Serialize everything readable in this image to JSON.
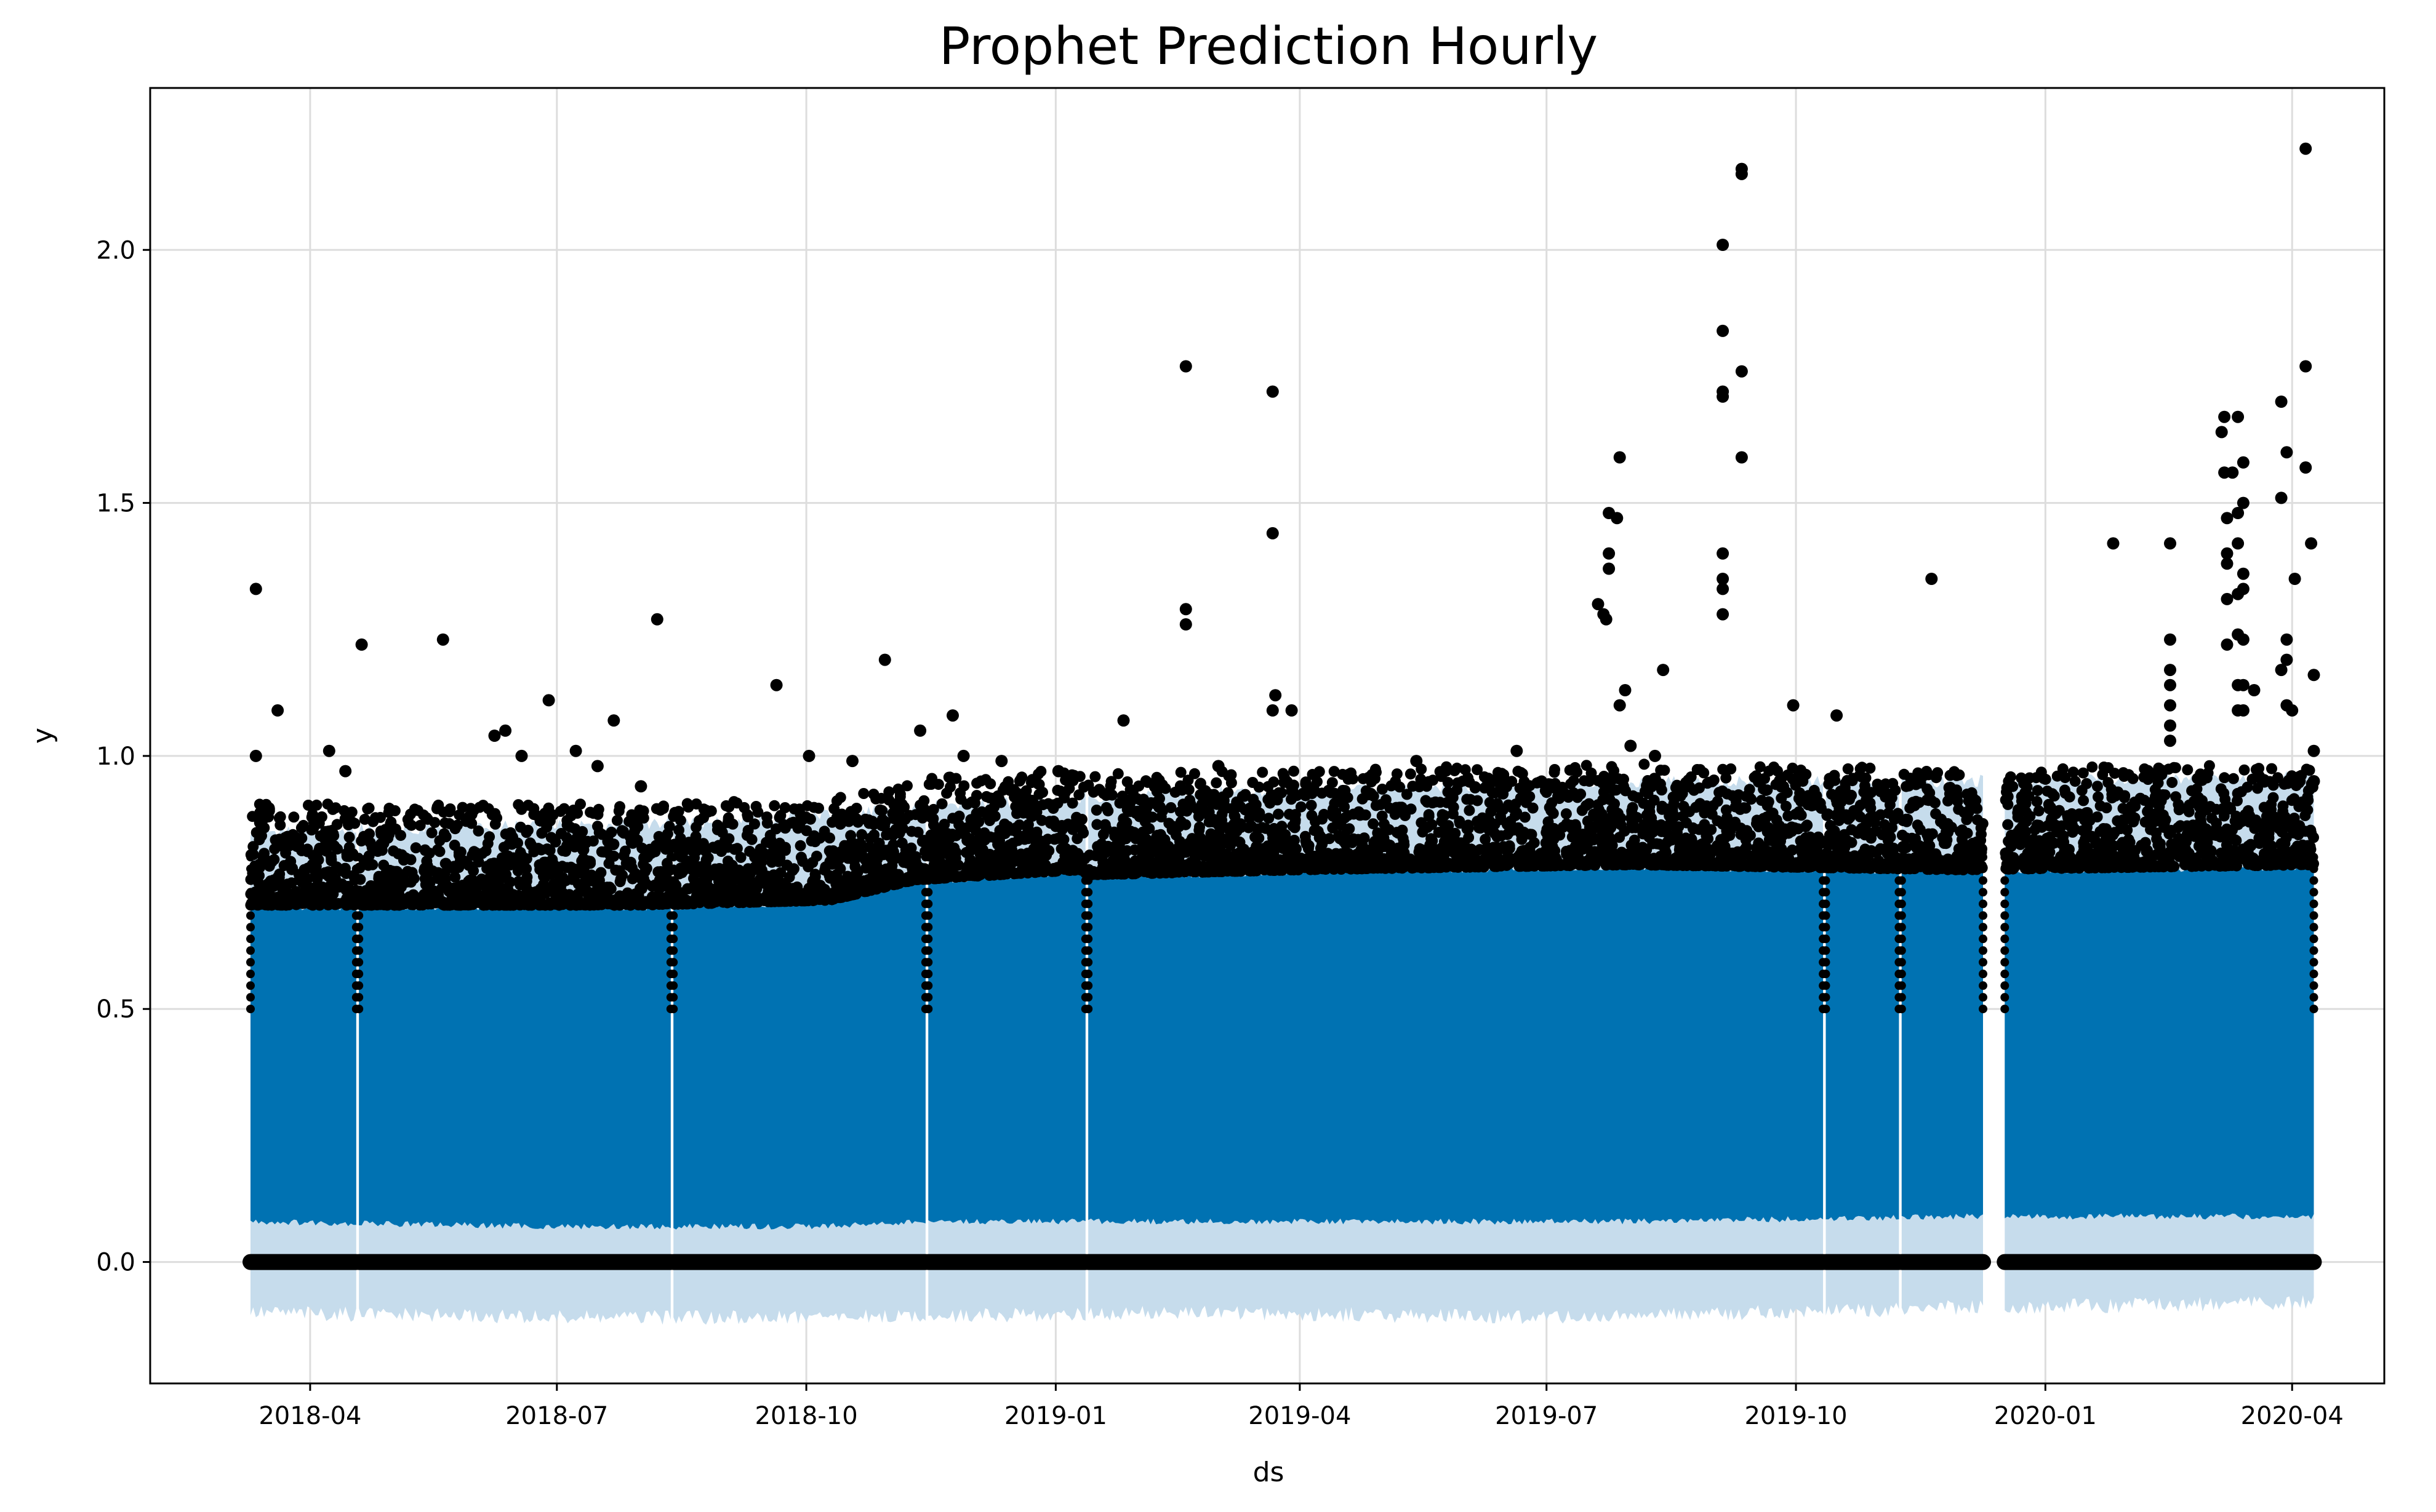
{
  "chart_data": {
    "type": "scatter",
    "title": "Prophet Prediction Hourly",
    "xlabel": "ds",
    "ylabel": "y",
    "x_ticks": [
      "2018-04",
      "2018-07",
      "2018-10",
      "2019-01",
      "2019-04",
      "2019-07",
      "2019-10",
      "2020-01",
      "2020-04"
    ],
    "y_ticks": [
      "0.0",
      "0.5",
      "1.0",
      "1.5",
      "2.0"
    ],
    "xlim": [
      "2018-02-01",
      "2020-05-05"
    ],
    "ylim": [
      -0.24,
      2.32
    ],
    "grid": true,
    "colors": {
      "forecast": "#0072B2",
      "uncertainty": "#c6dcec",
      "observed": "#000000",
      "grid": "#dddddd"
    },
    "series": [
      {
        "type": "band",
        "segments": [
          {
            "start": "2018-03-10",
            "end": "2018-04-18"
          },
          {
            "start": "2018-04-19",
            "end": "2018-08-12"
          },
          {
            "start": "2018-08-13",
            "end": "2018-11-14"
          },
          {
            "start": "2018-11-15",
            "end": "2019-01-12"
          },
          {
            "start": "2019-01-13",
            "end": "2019-10-11"
          },
          {
            "start": "2019-10-12",
            "end": "2019-11-08"
          },
          {
            "start": "2019-11-09",
            "end": "2019-12-09"
          },
          {
            "start": "2019-12-17",
            "end": "2020-04-09"
          }
        ],
        "upper": [
          [
            "2018-03-10",
            0.85
          ],
          [
            "2018-06-01",
            0.86
          ],
          [
            "2018-09-01",
            0.87
          ],
          [
            "2018-11-15",
            0.9
          ],
          [
            "2019-03-01",
            0.93
          ],
          [
            "2019-08-01",
            0.95
          ],
          [
            "2019-12-01",
            0.95
          ],
          [
            "2020-04-09",
            0.96
          ]
        ],
        "lower": [
          [
            "2018-03-10",
            -0.1
          ],
          [
            "2018-07-01",
            -0.11
          ],
          [
            "2018-10-01",
            -0.11
          ],
          [
            "2019-03-01",
            -0.1
          ],
          [
            "2019-07-01",
            -0.11
          ],
          [
            "2019-12-01",
            -0.09
          ],
          [
            "2020-04-09",
            -0.08
          ]
        ]
      },
      {
        "type": "forecast",
        "upper": [
          [
            "2018-03-10",
            0.7
          ],
          [
            "2018-08-01",
            0.7
          ],
          [
            "2018-10-10",
            0.71
          ],
          [
            "2018-11-10",
            0.75
          ],
          [
            "2019-01-10",
            0.77
          ],
          [
            "2019-01-13",
            0.76
          ],
          [
            "2019-04-01",
            0.77
          ],
          [
            "2019-08-01",
            0.78
          ],
          [
            "2019-12-01",
            0.77
          ],
          [
            "2020-04-09",
            0.78
          ]
        ],
        "lower": [
          [
            "2018-03-10",
            0.08
          ],
          [
            "2018-07-01",
            0.07
          ],
          [
            "2018-10-01",
            0.07
          ],
          [
            "2018-11-15",
            0.08
          ],
          [
            "2019-04-01",
            0.08
          ],
          [
            "2019-08-01",
            0.08
          ],
          [
            "2019-12-01",
            0.09
          ],
          [
            "2020-04-09",
            0.09
          ]
        ]
      },
      {
        "type": "observed-baseline",
        "value": 0.0,
        "segments": [
          {
            "start": "2018-03-10",
            "end": "2018-04-18"
          },
          {
            "start": "2018-04-19",
            "end": "2018-08-12"
          },
          {
            "start": "2018-08-13",
            "end": "2018-11-14"
          },
          {
            "start": "2018-11-15",
            "end": "2019-01-12"
          },
          {
            "start": "2019-01-13",
            "end": "2019-10-11"
          },
          {
            "start": "2019-10-12",
            "end": "2019-11-08"
          },
          {
            "start": "2019-11-09",
            "end": "2019-12-09"
          },
          {
            "start": "2019-12-17",
            "end": "2020-04-09"
          }
        ]
      },
      {
        "type": "observed",
        "points": [
          [
            "2018-03-12",
            1.33
          ],
          [
            "2018-03-12",
            1.0
          ],
          [
            "2018-03-20",
            1.09
          ],
          [
            "2018-04-08",
            1.01
          ],
          [
            "2018-04-14",
            0.97
          ],
          [
            "2018-04-20",
            1.22
          ],
          [
            "2018-05-20",
            1.23
          ],
          [
            "2018-06-08",
            1.04
          ],
          [
            "2018-06-12",
            1.05
          ],
          [
            "2018-06-18",
            1.0
          ],
          [
            "2018-06-28",
            1.11
          ],
          [
            "2018-07-08",
            1.01
          ],
          [
            "2018-07-16",
            0.98
          ],
          [
            "2018-07-22",
            1.07
          ],
          [
            "2018-08-07",
            1.27
          ],
          [
            "2018-08-01",
            0.94
          ],
          [
            "2018-09-20",
            1.14
          ],
          [
            "2018-10-02",
            1.0
          ],
          [
            "2018-10-18",
            0.99
          ],
          [
            "2018-10-30",
            1.19
          ],
          [
            "2018-11-12",
            1.05
          ],
          [
            "2018-11-24",
            1.08
          ],
          [
            "2018-11-28",
            1.0
          ],
          [
            "2018-12-12",
            0.99
          ],
          [
            "2019-01-02",
            0.97
          ],
          [
            "2019-01-26",
            1.07
          ],
          [
            "2019-02-18",
            1.77
          ],
          [
            "2019-02-18",
            1.29
          ],
          [
            "2019-02-18",
            1.26
          ],
          [
            "2019-03-02",
            0.98
          ],
          [
            "2019-03-22",
            1.72
          ],
          [
            "2019-03-22",
            1.44
          ],
          [
            "2019-03-23",
            1.12
          ],
          [
            "2019-03-22",
            1.09
          ],
          [
            "2019-03-29",
            1.09
          ],
          [
            "2019-05-14",
            0.99
          ],
          [
            "2019-06-20",
            1.01
          ],
          [
            "2019-07-20",
            1.3
          ],
          [
            "2019-07-22",
            1.28
          ],
          [
            "2019-07-23",
            1.27
          ],
          [
            "2019-07-24",
            1.48
          ],
          [
            "2019-07-24",
            1.4
          ],
          [
            "2019-07-24",
            1.37
          ],
          [
            "2019-07-27",
            1.47
          ],
          [
            "2019-07-28",
            1.59
          ],
          [
            "2019-07-28",
            1.1
          ],
          [
            "2019-07-30",
            1.13
          ],
          [
            "2019-08-01",
            1.02
          ],
          [
            "2019-08-10",
            1.0
          ],
          [
            "2019-08-13",
            1.17
          ],
          [
            "2019-09-04",
            2.01
          ],
          [
            "2019-09-04",
            1.84
          ],
          [
            "2019-09-04",
            1.72
          ],
          [
            "2019-09-04",
            1.71
          ],
          [
            "2019-09-04",
            1.4
          ],
          [
            "2019-09-04",
            1.35
          ],
          [
            "2019-09-04",
            1.33
          ],
          [
            "2019-09-04",
            1.28
          ],
          [
            "2019-09-11",
            2.16
          ],
          [
            "2019-09-11",
            2.15
          ],
          [
            "2019-09-11",
            1.76
          ],
          [
            "2019-09-11",
            1.59
          ],
          [
            "2019-09-30",
            1.1
          ],
          [
            "2019-10-16",
            1.08
          ],
          [
            "2019-11-20",
            1.35
          ],
          [
            "2020-01-26",
            1.42
          ],
          [
            "2020-02-16",
            1.42
          ],
          [
            "2020-02-16",
            1.23
          ],
          [
            "2020-02-16",
            1.17
          ],
          [
            "2020-02-16",
            1.14
          ],
          [
            "2020-02-16",
            1.1
          ],
          [
            "2020-02-16",
            1.06
          ],
          [
            "2020-02-16",
            1.03
          ],
          [
            "2020-03-06",
            1.64
          ],
          [
            "2020-03-07",
            1.67
          ],
          [
            "2020-03-07",
            1.56
          ],
          [
            "2020-03-08",
            1.47
          ],
          [
            "2020-03-08",
            1.4
          ],
          [
            "2020-03-08",
            1.38
          ],
          [
            "2020-03-08",
            1.31
          ],
          [
            "2020-03-08",
            1.22
          ],
          [
            "2020-03-10",
            1.56
          ],
          [
            "2020-03-12",
            1.67
          ],
          [
            "2020-03-12",
            1.48
          ],
          [
            "2020-03-12",
            1.42
          ],
          [
            "2020-03-12",
            1.32
          ],
          [
            "2020-03-12",
            1.24
          ],
          [
            "2020-03-12",
            1.14
          ],
          [
            "2020-03-12",
            1.09
          ],
          [
            "2020-03-14",
            1.58
          ],
          [
            "2020-03-14",
            1.5
          ],
          [
            "2020-03-14",
            1.36
          ],
          [
            "2020-03-14",
            1.33
          ],
          [
            "2020-03-14",
            1.23
          ],
          [
            "2020-03-14",
            1.14
          ],
          [
            "2020-03-14",
            1.09
          ],
          [
            "2020-03-18",
            1.13
          ],
          [
            "2020-03-28",
            1.51
          ],
          [
            "2020-03-28",
            1.7
          ],
          [
            "2020-03-30",
            1.6
          ],
          [
            "2020-03-30",
            1.23
          ],
          [
            "2020-03-28",
            1.17
          ],
          [
            "2020-03-30",
            1.19
          ],
          [
            "2020-03-30",
            1.1
          ],
          [
            "2020-04-01",
            1.09
          ],
          [
            "2020-04-02",
            1.35
          ],
          [
            "2020-04-06",
            2.2
          ],
          [
            "2020-04-06",
            1.77
          ],
          [
            "2020-04-06",
            1.57
          ],
          [
            "2020-04-08",
            1.42
          ],
          [
            "2020-04-09",
            1.16
          ],
          [
            "2020-04-09",
            1.01
          ],
          [
            "2020-04-09",
            0.95
          ]
        ]
      }
    ]
  }
}
